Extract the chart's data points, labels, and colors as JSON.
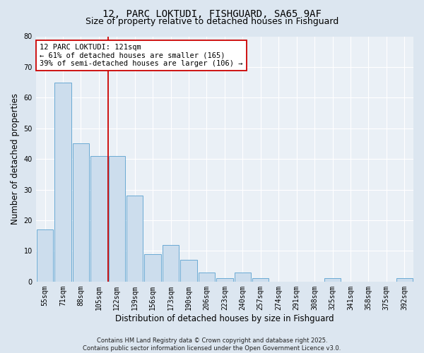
{
  "title": "12, PARC LOKTUDI, FISHGUARD, SA65 9AF",
  "subtitle": "Size of property relative to detached houses in Fishguard",
  "xlabel": "Distribution of detached houses by size in Fishguard",
  "ylabel": "Number of detached properties",
  "categories": [
    "55sqm",
    "71sqm",
    "88sqm",
    "105sqm",
    "122sqm",
    "139sqm",
    "156sqm",
    "173sqm",
    "190sqm",
    "206sqm",
    "223sqm",
    "240sqm",
    "257sqm",
    "274sqm",
    "291sqm",
    "308sqm",
    "325sqm",
    "341sqm",
    "358sqm",
    "375sqm",
    "392sqm"
  ],
  "values": [
    17,
    65,
    45,
    41,
    41,
    28,
    9,
    12,
    7,
    3,
    1,
    3,
    1,
    0,
    0,
    0,
    1,
    0,
    0,
    0,
    1
  ],
  "bar_color": "#ccdded",
  "bar_edge_color": "#6aaad4",
  "ylim": [
    0,
    80
  ],
  "yticks": [
    0,
    10,
    20,
    30,
    40,
    50,
    60,
    70,
    80
  ],
  "vline_index": 4,
  "vline_color": "#cc0000",
  "annotation_line1": "12 PARC LOKTUDI: 121sqm",
  "annotation_line2": "← 61% of detached houses are smaller (165)",
  "annotation_line3": "39% of semi-detached houses are larger (106) →",
  "annotation_box_color": "#cc0000",
  "bg_color": "#dce6f0",
  "plot_bg_color": "#eaf0f6",
  "footer": "Contains HM Land Registry data © Crown copyright and database right 2025.\nContains public sector information licensed under the Open Government Licence v3.0.",
  "title_fontsize": 10,
  "subtitle_fontsize": 9,
  "axis_label_fontsize": 8.5,
  "tick_fontsize": 7,
  "annotation_fontsize": 7.5,
  "footer_fontsize": 6
}
